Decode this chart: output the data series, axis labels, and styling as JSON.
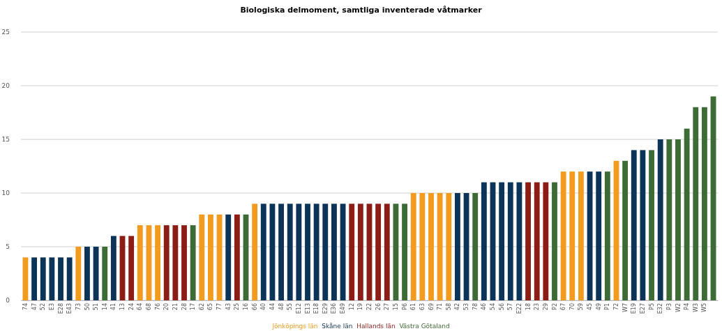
{
  "chart_data": {
    "type": "bar",
    "title": "Biologiska delmoment, samtliga inventerade våtmarker",
    "categories": [
      "74",
      "47",
      "52",
      "E3",
      "E28",
      "E43",
      "73",
      "50",
      "51",
      "14",
      "41",
      "13",
      "24",
      "64",
      "68",
      "76",
      "20",
      "21",
      "28",
      "17",
      "62",
      "65",
      "77",
      "43",
      "25",
      "16",
      "66",
      "40",
      "44",
      "48",
      "55",
      "E12",
      "E13",
      "E18",
      "E29",
      "E36",
      "E49",
      "12",
      "19",
      "22",
      "26",
      "27",
      "15",
      "P6",
      "61",
      "63",
      "69",
      "71",
      "58",
      "42",
      "53",
      "78",
      "46",
      "54",
      "56",
      "57",
      "E22",
      "18",
      "23",
      "29",
      "P2",
      "67",
      "70",
      "59",
      "45",
      "49",
      "P1",
      "72",
      "W7",
      "E19",
      "E27",
      "P5",
      "E32",
      "P3",
      "W2",
      "P4",
      "W3",
      "W5",
      null
    ],
    "series": [
      {
        "name": "Jönköpings län",
        "color": "#f29b1e",
        "values": [
          4,
          null,
          null,
          null,
          null,
          null,
          5,
          null,
          null,
          null,
          null,
          null,
          null,
          7,
          7,
          7,
          null,
          null,
          null,
          null,
          8,
          8,
          8,
          null,
          null,
          null,
          9,
          null,
          null,
          null,
          null,
          null,
          null,
          null,
          null,
          null,
          null,
          null,
          null,
          null,
          null,
          null,
          null,
          null,
          10,
          10,
          10,
          10,
          10,
          null,
          null,
          null,
          null,
          null,
          null,
          null,
          null,
          null,
          null,
          null,
          null,
          12,
          12,
          12,
          null,
          null,
          null,
          13,
          null,
          null,
          null,
          null,
          null,
          null,
          null,
          null,
          null,
          null,
          null
        ]
      },
      {
        "name": "Skåne län",
        "color": "#0c3358",
        "values": [
          null,
          4,
          4,
          4,
          4,
          4,
          null,
          5,
          5,
          null,
          6,
          null,
          null,
          null,
          null,
          null,
          null,
          null,
          null,
          null,
          null,
          null,
          null,
          8,
          null,
          null,
          null,
          9,
          9,
          9,
          9,
          9,
          9,
          9,
          9,
          9,
          9,
          null,
          null,
          null,
          null,
          null,
          null,
          null,
          null,
          null,
          null,
          null,
          null,
          10,
          10,
          null,
          11,
          11,
          11,
          11,
          11,
          null,
          null,
          null,
          null,
          null,
          null,
          null,
          12,
          12,
          null,
          null,
          null,
          14,
          14,
          null,
          15,
          null,
          null,
          null,
          null,
          null,
          null
        ]
      },
      {
        "name": "Hallands län",
        "color": "#8b1d16",
        "values": [
          null,
          null,
          null,
          null,
          null,
          null,
          null,
          null,
          null,
          null,
          null,
          6,
          6,
          null,
          null,
          null,
          7,
          7,
          7,
          null,
          null,
          null,
          null,
          null,
          8,
          null,
          null,
          null,
          null,
          null,
          null,
          null,
          null,
          null,
          null,
          null,
          null,
          9,
          9,
          9,
          9,
          9,
          null,
          null,
          null,
          null,
          null,
          null,
          null,
          null,
          null,
          null,
          null,
          null,
          null,
          null,
          null,
          11,
          11,
          11,
          null,
          null,
          null,
          null,
          null,
          null,
          null,
          null,
          null,
          null,
          null,
          null,
          null,
          null,
          null,
          null,
          null,
          null,
          null
        ]
      },
      {
        "name": "Västra Götaland",
        "color": "#3d6b35",
        "values": [
          null,
          null,
          null,
          null,
          null,
          null,
          null,
          null,
          null,
          5,
          null,
          null,
          null,
          null,
          null,
          null,
          null,
          null,
          null,
          7,
          null,
          null,
          null,
          null,
          null,
          8,
          null,
          null,
          null,
          null,
          null,
          null,
          null,
          null,
          null,
          null,
          null,
          null,
          null,
          null,
          null,
          null,
          9,
          9,
          null,
          null,
          null,
          null,
          null,
          null,
          null,
          10,
          null,
          null,
          null,
          null,
          null,
          null,
          null,
          null,
          11,
          null,
          null,
          null,
          null,
          null,
          12,
          null,
          13,
          null,
          null,
          14,
          null,
          15,
          15,
          16,
          18,
          18,
          19
        ]
      }
    ],
    "ylim": [
      0,
      25
    ],
    "yticks": [
      0,
      5,
      10,
      15,
      20,
      25
    ],
    "grid": "y",
    "legend": "bottom"
  }
}
